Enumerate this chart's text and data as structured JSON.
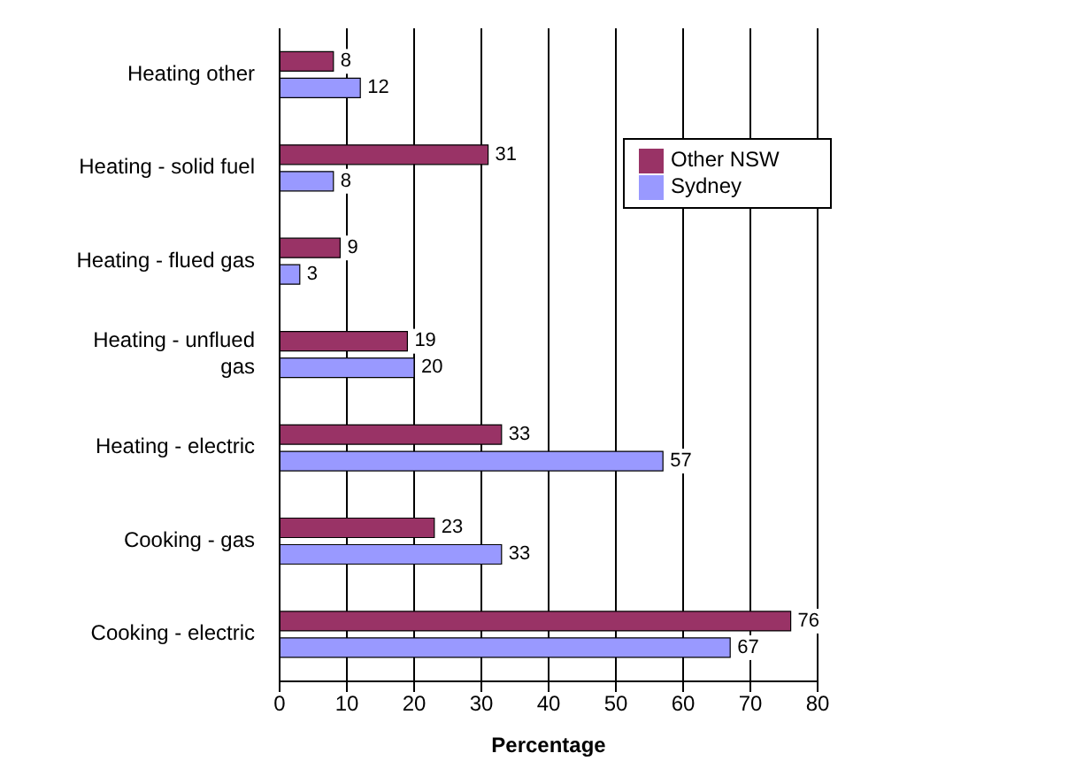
{
  "chart_data": {
    "type": "bar",
    "orientation": "horizontal",
    "xlabel": "Percentage",
    "categories": [
      "Heating other",
      "Heating - solid fuel",
      "Heating - flued gas",
      "Heating - unflued gas",
      "Heating - electric",
      "Cooking - gas",
      "Cooking - electric"
    ],
    "series": [
      {
        "name": "Other NSW",
        "color": "#993366",
        "values": [
          8,
          31,
          9,
          19,
          33,
          23,
          76
        ]
      },
      {
        "name": "Sydney",
        "color": "#9999ff",
        "values": [
          12,
          8,
          3,
          20,
          57,
          33,
          67
        ]
      }
    ],
    "xlim": [
      0,
      80
    ],
    "xticks": [
      0,
      10,
      20,
      30,
      40,
      50,
      60,
      70,
      80
    ],
    "grid": "x",
    "legend": "top right",
    "data_labels": true
  }
}
